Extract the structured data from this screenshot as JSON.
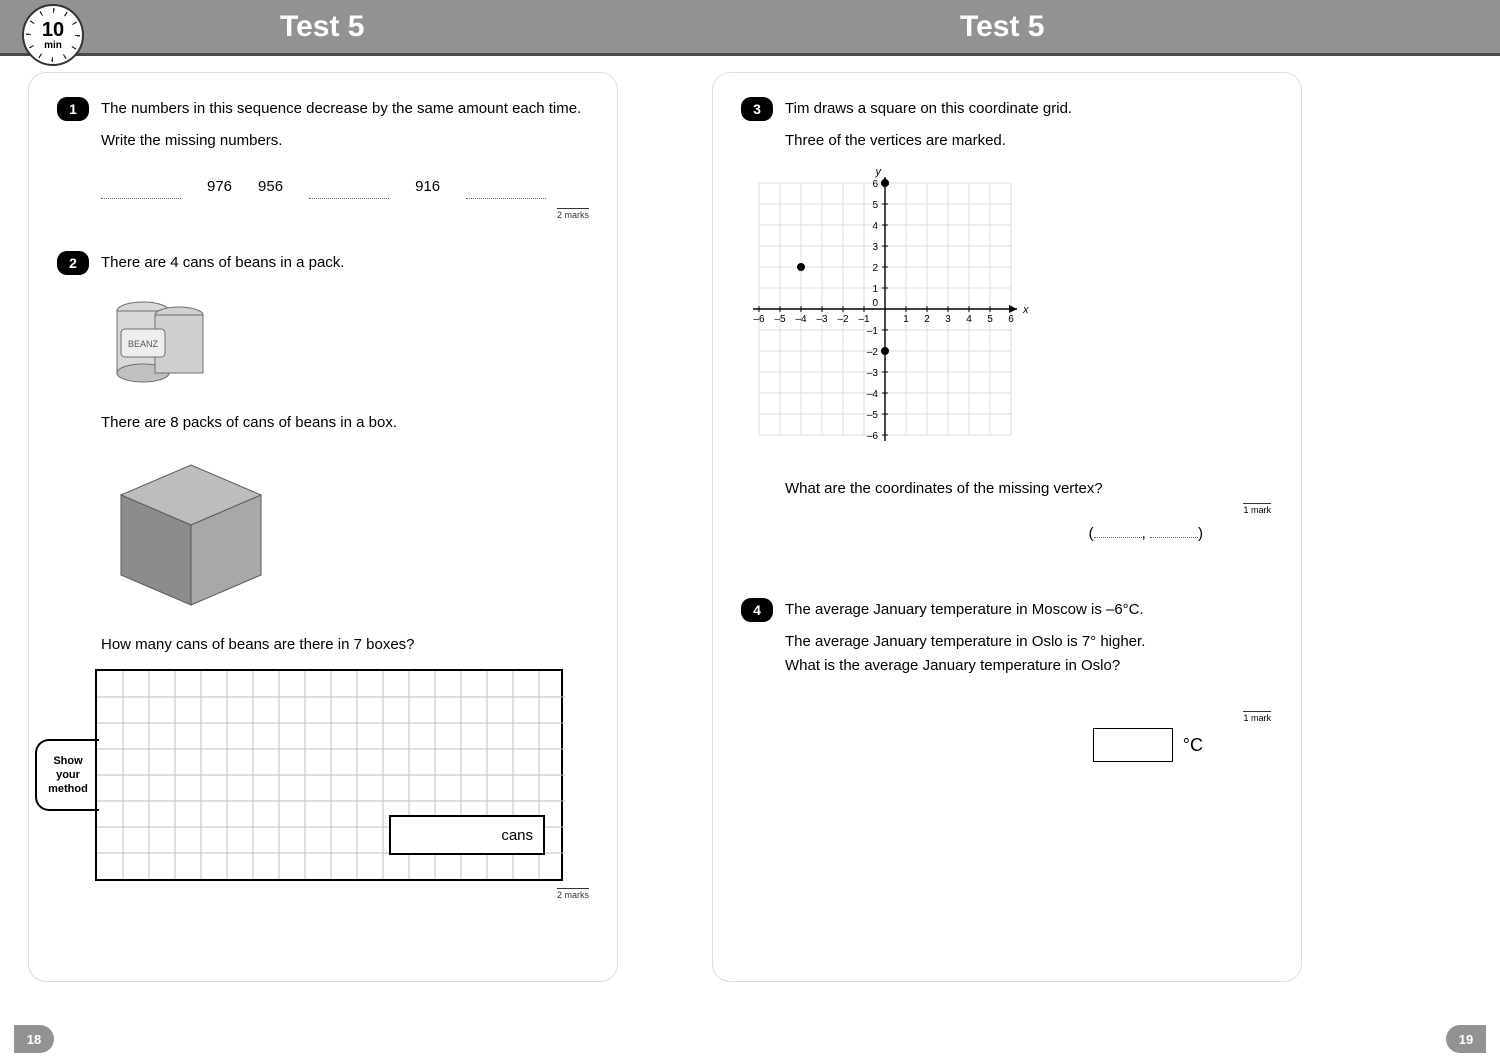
{
  "header": {
    "title_left": "Test 5",
    "title_right": "Test 5",
    "timer_value": "10",
    "timer_unit": "min"
  },
  "page_left": {
    "page_number": "18",
    "q1": {
      "number": "1",
      "text_a": "The numbers in this sequence decrease by the same amount each time.",
      "text_b": "Write the missing numbers.",
      "seq": {
        "v1": "976",
        "v2": "956",
        "v3": "916"
      },
      "marks": "2 marks"
    },
    "q2": {
      "number": "2",
      "text_a": "There are 4 cans of beans in a pack.",
      "text_b": "There are 8 packs of cans of beans in a box.",
      "text_c": "How many cans of beans are there in 7 boxes?",
      "show_label_1": "Show",
      "show_label_2": "your",
      "show_label_3": "method",
      "answer_unit": "cans",
      "marks": "2 marks",
      "work_grid": {
        "cols": 18,
        "rows": 8,
        "cell": 26,
        "border_color": "#000000",
        "grid_color": "#bfbfbf",
        "ans_box": {
          "w": 156,
          "h": 40
        }
      },
      "can_svg": {
        "body_fill": "#d8d8d8",
        "body_stroke": "#6f6f6f",
        "label_fill": "#eeeeee",
        "label_text": "BEANZ"
      },
      "box_svg": {
        "top_fill": "#bdbdbd",
        "left_fill": "#8c8c8c",
        "right_fill": "#a8a8a8",
        "stroke": "#5a5a5a"
      }
    }
  },
  "page_right": {
    "page_number": "19",
    "q3": {
      "number": "3",
      "text_a": "Tim draws a square on this coordinate grid.",
      "text_b": "Three of the vertices are marked.",
      "text_c": "What are the coordinates of the missing vertex?",
      "answer_open": "(",
      "answer_sep": ",",
      "answer_close": ")",
      "marks": "1 mark",
      "grid": {
        "xmin": -6,
        "xmax": 6,
        "ymin": -6,
        "ymax": 6,
        "cell": 21,
        "grid_color": "#dddddd",
        "axis_color": "#000000",
        "xlabel": "x",
        "ylabel": "y",
        "origin_label": "0",
        "xticks": [
          "–6",
          "–5",
          "–4",
          "–3",
          "–2",
          "–1",
          "1",
          "2",
          "3",
          "4",
          "5",
          "6"
        ],
        "yticks_pos": [
          "1",
          "2",
          "3",
          "4",
          "5",
          "6"
        ],
        "yticks_neg": [
          "–1",
          "–2",
          "–3",
          "–4",
          "–5",
          "–6"
        ],
        "points": [
          {
            "x": 0,
            "y": 6
          },
          {
            "x": -4,
            "y": 2
          },
          {
            "x": 0,
            "y": -2
          }
        ],
        "point_radius": 4,
        "point_fill": "#000000"
      }
    },
    "q4": {
      "number": "4",
      "text_a": "The average January temperature in Moscow is –6°C.",
      "text_b": "The average January temperature in Oslo is 7° higher.",
      "text_c": "What is the average January temperature in Oslo?",
      "unit": "°C",
      "marks": "1 mark"
    }
  }
}
